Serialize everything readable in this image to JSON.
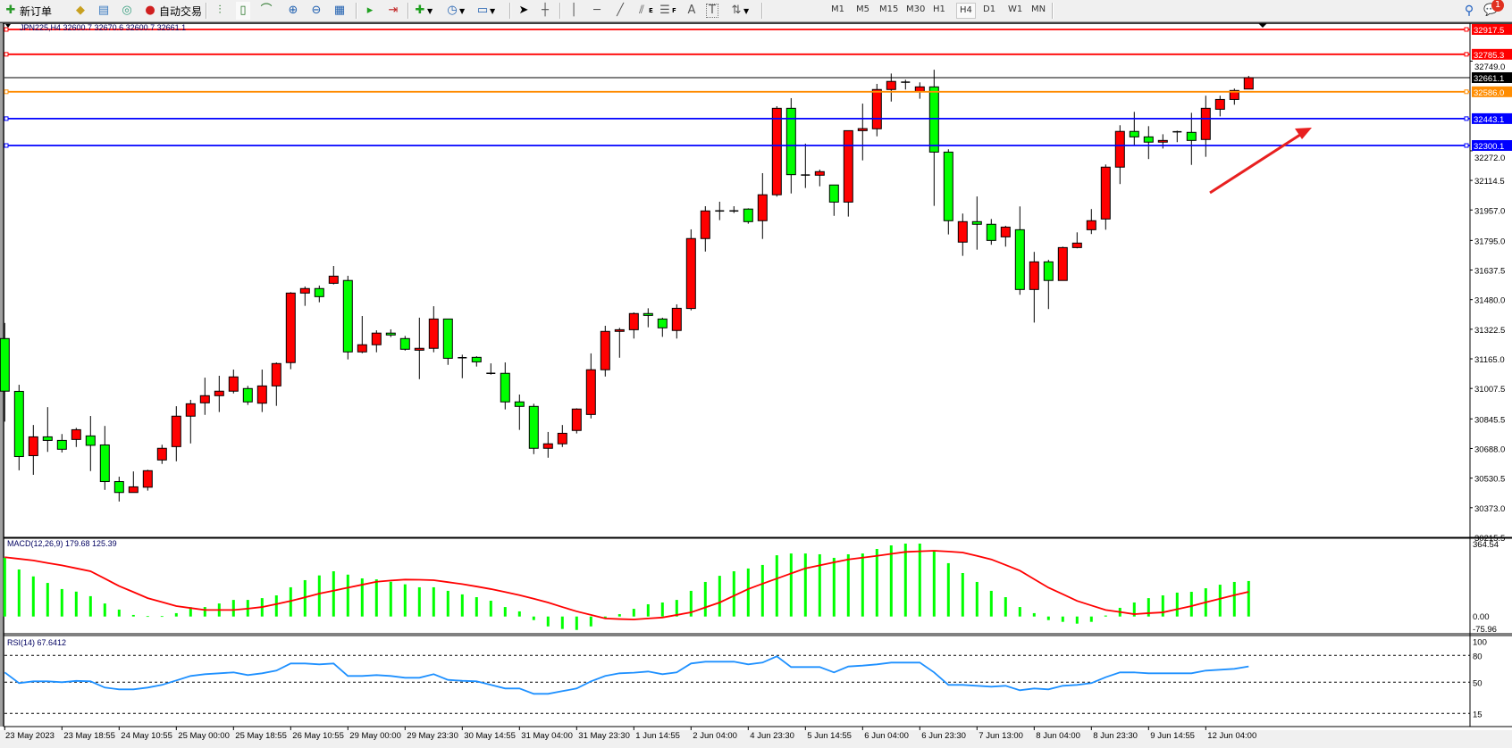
{
  "toolbar": {
    "new_order_label": "新订单",
    "auto_trading_label": "自动交易",
    "periods": [
      "M1",
      "M5",
      "M15",
      "M30",
      "H1",
      "H4",
      "D1",
      "W1",
      "MN"
    ],
    "active_period": "H4",
    "notification_count": "1",
    "icons": [
      "new-order-icon",
      "market-watch-icon",
      "navigator-icon",
      "signals-icon",
      "auto-trading-icon",
      "bar-chart-icon",
      "candle-chart-icon",
      "line-chart-icon",
      "zoom-in-icon",
      "zoom-out-icon",
      "tile-windows-icon",
      "auto-scroll-icon",
      "chart-shift-icon",
      "indicators-icon",
      "periods-clock-icon",
      "templates-icon",
      "cursor-icon",
      "crosshair-icon",
      "vertical-line-icon",
      "horizontal-line-icon",
      "trendline-icon",
      "equidistant-channel-icon",
      "fibonacci-icon",
      "text-icon",
      "text-label-icon",
      "arrows-icon",
      "search-icon",
      "notification-icon"
    ],
    "tool_labels": {
      "equidistant": "E",
      "fibonacci": "F",
      "text": "A",
      "label": "T"
    }
  },
  "chart_data": {
    "type": "candlestick",
    "symbol_header": "JPN225,H4  32600.7 32670.6 32600.7 32661.1",
    "bull_color": "#ff0000",
    "bear_color": "#00ff00",
    "price_axis_ticks": [
      "32749.0",
      "32272.0",
      "32114.5",
      "31957.0",
      "31795.0",
      "31637.5",
      "31480.0",
      "31322.5",
      "31165.0",
      "31007.5",
      "30845.5",
      "30688.0",
      "30530.5",
      "30373.0",
      "30215.5"
    ],
    "ylim": [
      30215.5,
      32917.5
    ],
    "x_labels": [
      "23 May 2023",
      "23 May 18:55",
      "24 May 10:55",
      "25 May 00:00",
      "25 May 18:55",
      "26 May 10:55",
      "29 May 00:00",
      "29 May 23:30",
      "30 May 14:55",
      "31 May 04:00",
      "31 May 23:30",
      "1 Jun 14:55",
      "2 Jun 04:00",
      "4 Jun 23:30",
      "5 Jun 14:55",
      "6 Jun 04:00",
      "6 Jun 23:30",
      "7 Jun 13:00",
      "8 Jun 04:00",
      "8 Jun 23:30",
      "9 Jun 14:55",
      "12 Jun 04:00"
    ],
    "ohlc": [
      [
        31273,
        31356,
        30831,
        30993
      ],
      [
        30992,
        31027,
        30572,
        30645
      ],
      [
        30650,
        30813,
        30548,
        30750
      ],
      [
        30750,
        30908,
        30670,
        30731
      ],
      [
        30731,
        30765,
        30667,
        30684
      ],
      [
        30736,
        30798,
        30696,
        30788
      ],
      [
        30755,
        30861,
        30568,
        30705
      ],
      [
        30707,
        30808,
        30468,
        30512
      ],
      [
        30512,
        30538,
        30406,
        30454
      ],
      [
        30454,
        30566,
        30454,
        30484
      ],
      [
        30482,
        30575,
        30464,
        30570
      ],
      [
        30627,
        30708,
        30606,
        30689
      ],
      [
        30698,
        30913,
        30620,
        30860
      ],
      [
        30860,
        30947,
        30715,
        30926
      ],
      [
        30931,
        31065,
        30867,
        30969
      ],
      [
        30969,
        31075,
        30882,
        30993
      ],
      [
        30993,
        31108,
        30981,
        31069
      ],
      [
        31007,
        31021,
        30920,
        30936
      ],
      [
        30929,
        31108,
        30882,
        31021
      ],
      [
        31021,
        31146,
        30915,
        31140
      ],
      [
        31145,
        31520,
        31110,
        31515
      ],
      [
        31515,
        31550,
        31447,
        31539
      ],
      [
        31539,
        31555,
        31466,
        31496
      ],
      [
        31567,
        31659,
        31561,
        31605
      ],
      [
        31582,
        31607,
        31162,
        31202
      ],
      [
        31202,
        31393,
        31195,
        31240
      ],
      [
        31240,
        31317,
        31200,
        31302
      ],
      [
        31302,
        31322,
        31281,
        31292
      ],
      [
        31273,
        31287,
        31209,
        31216
      ],
      [
        31211,
        31384,
        31057,
        31221
      ],
      [
        31221,
        31445,
        31200,
        31377
      ],
      [
        31377,
        31377,
        31133,
        31168
      ],
      [
        31171,
        31187,
        31062,
        31171
      ],
      [
        31173,
        31179,
        31124,
        31149
      ],
      [
        31088,
        31141,
        31081,
        31088
      ],
      [
        31088,
        31146,
        30896,
        30936
      ],
      [
        30936,
        30975,
        30787,
        30912
      ],
      [
        30912,
        30926,
        30658,
        30689
      ],
      [
        30689,
        30776,
        30639,
        30713
      ],
      [
        30713,
        30813,
        30696,
        30769
      ],
      [
        30784,
        30902,
        30768,
        30898
      ],
      [
        30869,
        31194,
        30848,
        31107
      ],
      [
        31107,
        31341,
        31071,
        31311
      ],
      [
        31311,
        31330,
        31171,
        31320
      ],
      [
        31320,
        31412,
        31273,
        31406
      ],
      [
        31406,
        31434,
        31333,
        31396
      ],
      [
        31377,
        31384,
        31282,
        31330
      ],
      [
        31316,
        31455,
        31273,
        31434
      ],
      [
        31433,
        31854,
        31423,
        31805
      ],
      [
        31805,
        31977,
        31736,
        31952
      ],
      [
        31952,
        32001,
        31903,
        31952
      ],
      [
        31952,
        31977,
        31941,
        31952
      ],
      [
        31962,
        31966,
        31884,
        31895
      ],
      [
        31900,
        32153,
        31803,
        32038
      ],
      [
        32038,
        32509,
        32028,
        32498
      ],
      [
        32498,
        32552,
        32045,
        32145
      ],
      [
        32143,
        32310,
        32074,
        32143
      ],
      [
        32142,
        32172,
        32083,
        32161
      ],
      [
        32090,
        32090,
        31926,
        31999
      ],
      [
        31999,
        32379,
        31922,
        32379
      ],
      [
        32379,
        32523,
        32221,
        32390
      ],
      [
        32389,
        32628,
        32349,
        32598
      ],
      [
        32598,
        32683,
        32534,
        32641
      ],
      [
        32637,
        32650,
        32598,
        32637
      ],
      [
        32588,
        32636,
        32549,
        32612
      ],
      [
        32612,
        32703,
        31979,
        32265
      ],
      [
        32265,
        32280,
        31827,
        31900
      ],
      [
        31786,
        31938,
        31713,
        31895
      ],
      [
        31895,
        32029,
        31746,
        31881
      ],
      [
        31881,
        31909,
        31772,
        31795
      ],
      [
        31814,
        31873,
        31762,
        31866
      ],
      [
        31852,
        31976,
        31506,
        31534
      ],
      [
        31534,
        31734,
        31358,
        31681
      ],
      [
        31681,
        31692,
        31430,
        31582
      ],
      [
        31582,
        31762,
        31582,
        31757
      ],
      [
        31757,
        31838,
        31753,
        31781
      ],
      [
        31852,
        31962,
        31829,
        31900
      ],
      [
        31909,
        32199,
        31852,
        32185
      ],
      [
        32185,
        32408,
        32095,
        32375
      ],
      [
        32375,
        32479,
        32299,
        32346
      ],
      [
        32346,
        32403,
        32228,
        32318
      ],
      [
        32318,
        32360,
        32284,
        32327
      ],
      [
        32373,
        32379,
        32318,
        32373
      ],
      [
        32370,
        32474,
        32197,
        32327
      ],
      [
        32332,
        32565,
        32240,
        32498
      ],
      [
        32493,
        32565,
        32455,
        32545
      ],
      [
        32545,
        32603,
        32517,
        32593
      ],
      [
        32600.7,
        32670.6,
        32600.7,
        32661.1
      ]
    ],
    "price_lines": [
      {
        "value": "32917.5",
        "color": "#ff0000"
      },
      {
        "value": "32785.3",
        "color": "#ff0000"
      },
      {
        "value": "32661.1",
        "color": "#000000"
      },
      {
        "value": "32586.0",
        "color": "#ff8c00"
      },
      {
        "value": "32443.1",
        "color": "#0000ff"
      },
      {
        "value": "32300.1",
        "color": "#0000ff"
      }
    ],
    "annotation_arrow_color": "#e82020",
    "macd": {
      "label": "MACD(12,26,9) 179.68 125.39",
      "axis_labels": [
        "364.54",
        "0.00",
        "-75.96"
      ],
      "ylim": [
        -75.96,
        364.54
      ],
      "histogram_color": "#00ff00",
      "signal_color": "#ff0000",
      "histogram": [
        297,
        238,
        203,
        170,
        139,
        126,
        103,
        66,
        35,
        8,
        2,
        2,
        17,
        47,
        48,
        66,
        84,
        84,
        93,
        107,
        148,
        184,
        208,
        229,
        212,
        193,
        188,
        176,
        163,
        148,
        148,
        130,
        112,
        98,
        80,
        48,
        26,
        -18,
        -50,
        -63,
        -68,
        -50,
        -10,
        12,
        39,
        62,
        71,
        84,
        130,
        175,
        206,
        229,
        243,
        261,
        310,
        319,
        319,
        315,
        297,
        315,
        319,
        342,
        360,
        369,
        369,
        333,
        270,
        220,
        175,
        130,
        98,
        48,
        17,
        -18,
        -27,
        -36,
        -27,
        5,
        44,
        71,
        93,
        107,
        121,
        125,
        143,
        161,
        175,
        179.68
      ],
      "signal": [
        300,
        292,
        284,
        271,
        259,
        244,
        229,
        192,
        154,
        124,
        93,
        73,
        53,
        43,
        33,
        33,
        33,
        40,
        48,
        63,
        79,
        97,
        116,
        131,
        146,
        161,
        176,
        182,
        187,
        186,
        184,
        174,
        164,
        152,
        139,
        124,
        108,
        90,
        71,
        48,
        26,
        8,
        -10,
        -13,
        -15,
        -10,
        -5,
        8,
        21,
        46,
        71,
        105,
        139,
        166,
        192,
        218,
        244,
        259,
        274,
        289,
        298,
        307,
        317,
        327,
        330,
        333,
        329,
        324,
        307,
        289,
        261,
        232,
        189,
        146,
        113,
        79,
        56,
        33,
        23,
        12,
        17,
        21,
        37,
        53,
        72,
        90,
        108,
        125.39
      ]
    },
    "rsi": {
      "label": "RSI(14) 67.6412",
      "axis_labels": [
        "100",
        "80",
        "50",
        "15"
      ],
      "levels": [
        80,
        50,
        15
      ],
      "line_color": "#1e90ff",
      "values": [
        61,
        49,
        51,
        51,
        50,
        51.5,
        51,
        44,
        42,
        42,
        44,
        47,
        52,
        57,
        59,
        60,
        61,
        58,
        60,
        63,
        71,
        71,
        70,
        71,
        57,
        57,
        58,
        57,
        55,
        55,
        59,
        52.6,
        51.6,
        51,
        47,
        43,
        43,
        37,
        37,
        40,
        43,
        51,
        57,
        60,
        60.7,
        62,
        59,
        61,
        71,
        73,
        73,
        73,
        70,
        72,
        79,
        67,
        67,
        67,
        61,
        67.6,
        68.6,
        70,
        72,
        72,
        72,
        61,
        47,
        47,
        46,
        45,
        46,
        41,
        43,
        42,
        46,
        47,
        49,
        55.6,
        61,
        61,
        60,
        60,
        60,
        60,
        63,
        64,
        65,
        67.6412
      ]
    }
  }
}
